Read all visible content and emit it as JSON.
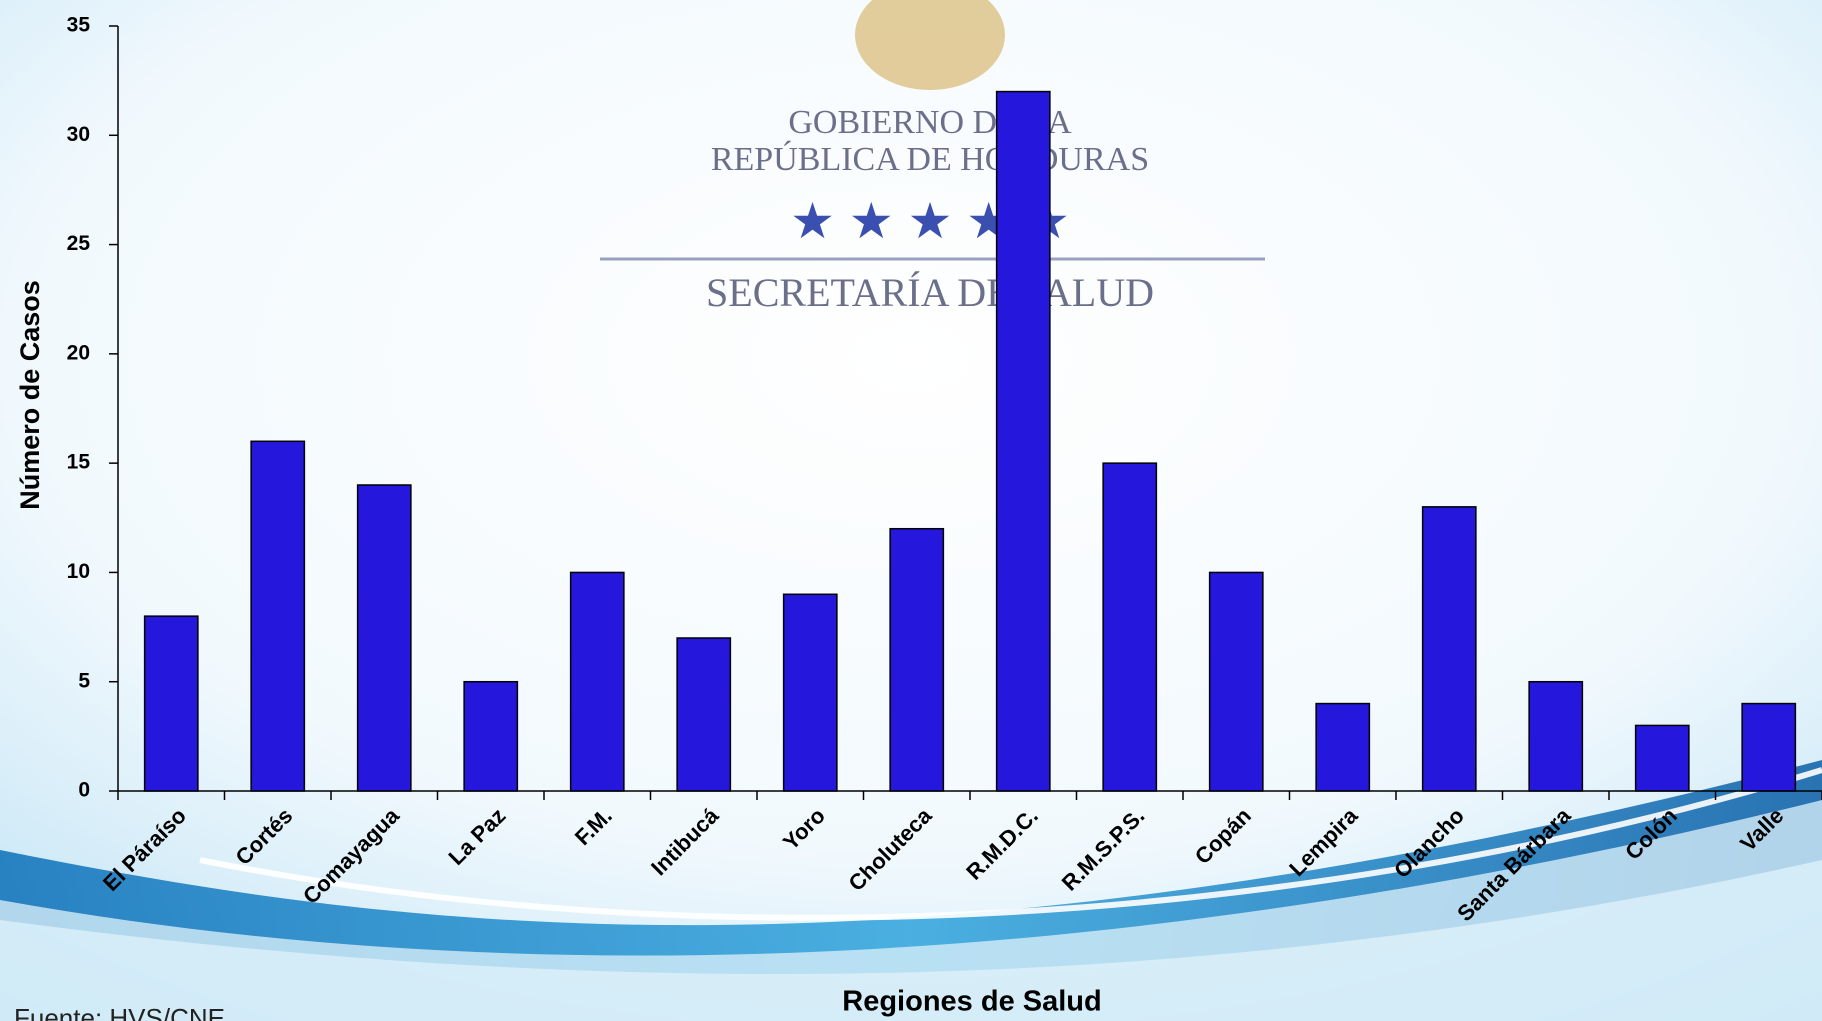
{
  "chart_data": {
    "type": "bar",
    "logo_lines": [
      "GOBIERNO DE LA",
      "REPÚBLICA DE HONDURAS",
      "SECRETARÍA DE SALUD"
    ],
    "source": "Fuente: HVS/CNE",
    "x_label": "Regiones de Salud",
    "y_label": "Número de Casos",
    "categories": [
      "El Páraíso",
      "Cortés",
      "Comayagua",
      "La Paz",
      "F.M.",
      "Intibucá",
      "Yoro",
      "Choluteca",
      "R.M.D.C.",
      "R.M.S.P.S.",
      "Copán",
      "Lempira",
      "Olancho",
      "Santa Bárbara",
      "Colón",
      "Valle"
    ],
    "values": [
      8,
      16,
      14,
      5,
      10,
      7,
      9,
      12,
      32,
      15,
      10,
      4,
      13,
      5,
      3,
      4
    ],
    "color": "#2518dc",
    "ylim": [
      0,
      35
    ],
    "yticks": [
      0,
      5,
      10,
      15,
      20,
      25,
      30,
      35
    ]
  }
}
